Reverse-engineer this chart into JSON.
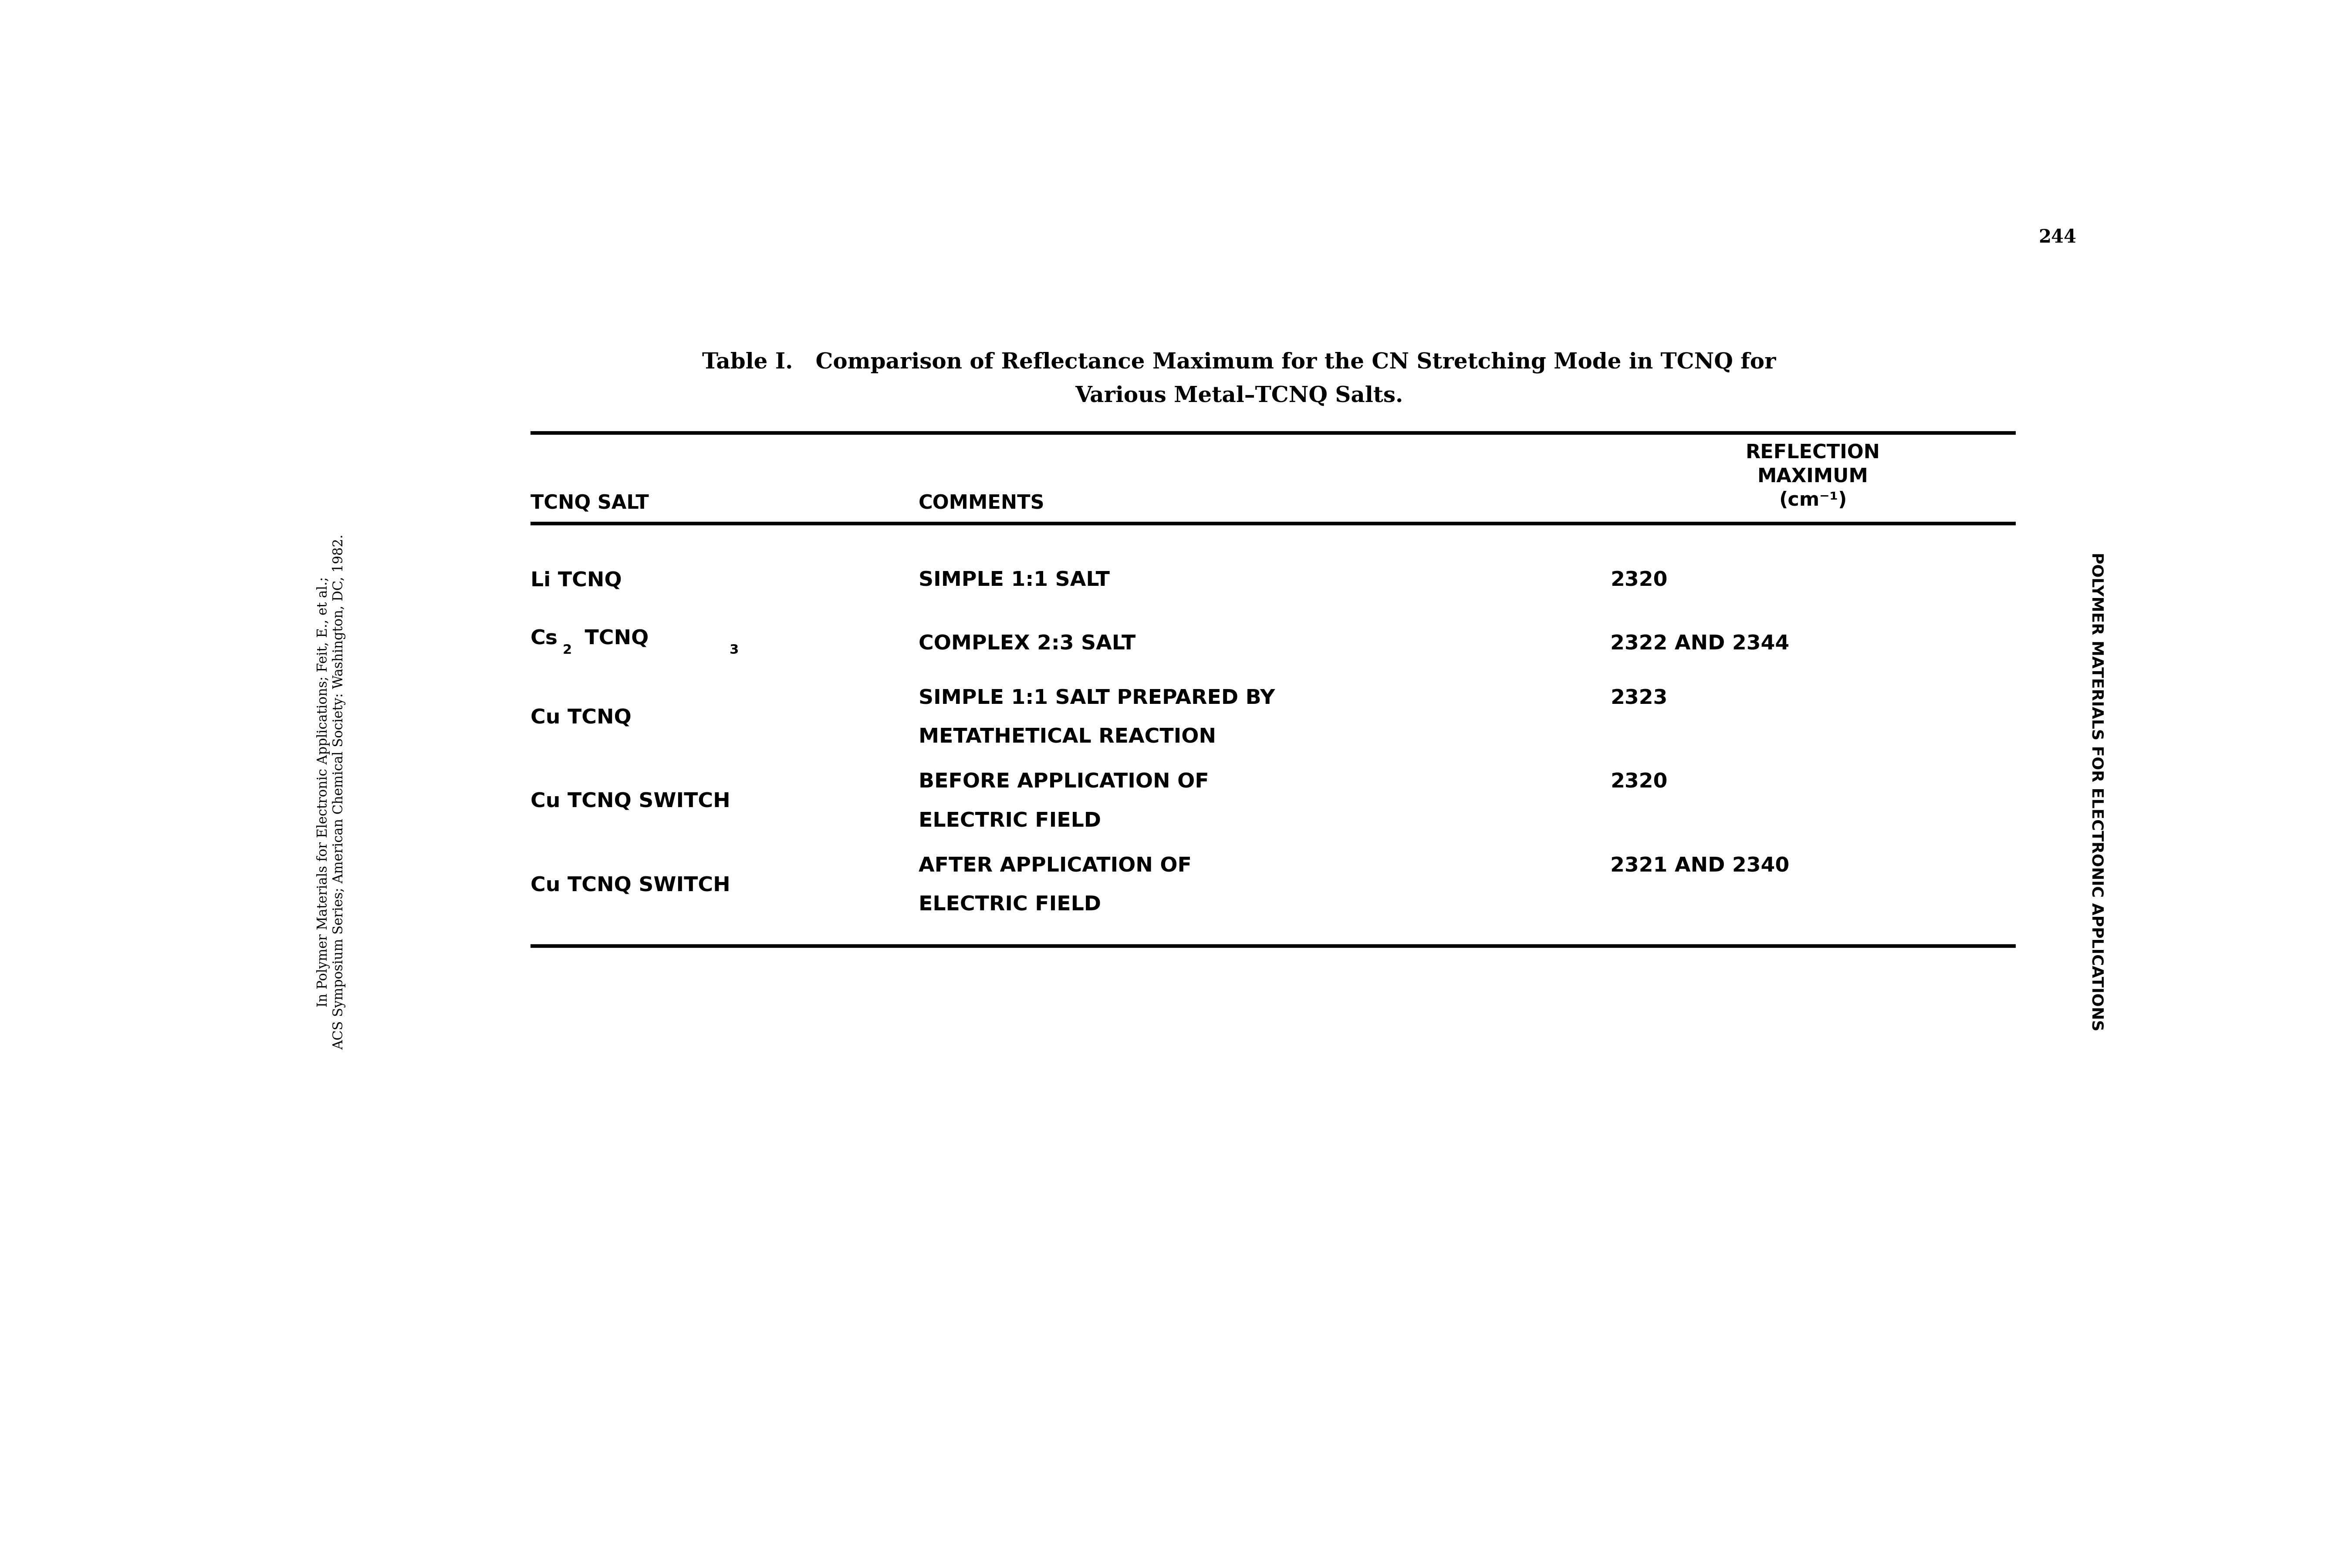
{
  "title_line1": "Table I.   Comparison of Reflectance Maximum for the CN Stretching Mode in TCNQ for",
  "title_line2": "Various Metal–TCNQ Salts.",
  "col_headers_line1": [
    "TCNQ SALT",
    "COMMENTS",
    "REFLECTION"
  ],
  "col_headers_line2": [
    "",
    "",
    "MAXIMUM"
  ],
  "col_headers_line3": [
    "",
    "",
    "(cm⁻¹)"
  ],
  "rows": [
    [
      "Li TCNQ",
      "SIMPLE 1:1 SALT",
      "2320"
    ],
    [
      "Cs2 TCNQ3",
      "COMPLEX 2:3 SALT",
      "2322 AND 2344"
    ],
    [
      "Cu TCNQ",
      "SIMPLE 1:1 SALT PREPARED BY\nMETATHETICAL REACTION",
      "2323"
    ],
    [
      "Cu TCNQ SWITCH",
      "BEFORE APPLICATION OF\nELECTRIC FIELD",
      "2320"
    ],
    [
      "Cu TCNQ SWITCH",
      "AFTER APPLICATION OF\nELECTRIC FIELD",
      "2321 AND 2340"
    ]
  ],
  "side_text_left_line1": "In Polymer Materials for Electronic Applications; Feit, E., et al.;",
  "side_text_left_line2": "ACS Symposium Series; American Chemical Society: Washington, DC, 1982.",
  "side_text_right": "POLYMER MATERIALS FOR ELECTRONIC APPLICATIONS",
  "page_number": "244",
  "bg_color": "#ffffff",
  "text_color": "#000000",
  "title_fontsize": 36,
  "header_fontsize": 32,
  "body_fontsize": 34,
  "side_fontsize": 22,
  "page_fontsize": 30
}
